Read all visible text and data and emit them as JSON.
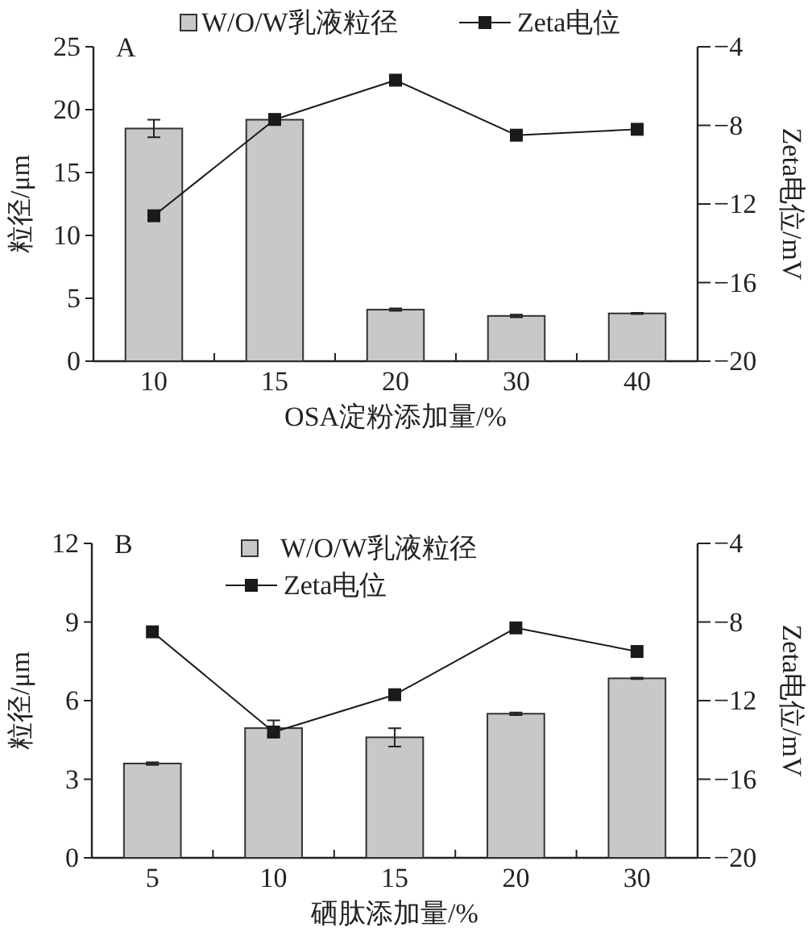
{
  "chart_data": [
    {
      "type": "bar",
      "title": "A",
      "categories": [
        "10",
        "15",
        "20",
        "30",
        "40"
      ],
      "xlabel": "OSA淀粉添加量/%",
      "ylabel": "粒径/μm",
      "y2label": "Zeta电位/mV",
      "series": [
        {
          "name": "W/O/W乳液粒径",
          "color": "#c8c8c8",
          "values": [
            18.5,
            19.2,
            4.1,
            3.6,
            3.8
          ],
          "errors": [
            0.7,
            0.1,
            0.1,
            0.1,
            0.05
          ]
        },
        {
          "name": "Zeta电位",
          "type": "line",
          "axis": "y2",
          "color": "#1a1a1a",
          "values": [
            -12.6,
            -7.7,
            -5.7,
            -8.5,
            -8.2
          ]
        }
      ],
      "ylim": [
        0,
        25
      ],
      "yticks": [
        0,
        5,
        10,
        15,
        20,
        25
      ],
      "y2lim": [
        -20,
        -4
      ],
      "y2ticks": [
        -20,
        -16,
        -12,
        -8,
        -4
      ],
      "marker": "square",
      "grid": false,
      "legend": "top"
    },
    {
      "type": "bar",
      "title": "B",
      "categories": [
        "5",
        "10",
        "15",
        "20",
        "30"
      ],
      "xlabel": "硒肽添加量/%",
      "ylabel": "粒径/μm",
      "y2label": "Zeta电位/mV",
      "series": [
        {
          "name": "W/O/W乳液粒径",
          "color": "#c8c8c8",
          "values": [
            3.6,
            4.95,
            4.6,
            5.5,
            6.85
          ],
          "errors": [
            0.05,
            0.3,
            0.35,
            0.05,
            0.03
          ]
        },
        {
          "name": "Zeta电位",
          "type": "line",
          "axis": "y2",
          "color": "#1a1a1a",
          "values": [
            -8.5,
            -13.6,
            -11.7,
            -8.3,
            -9.5
          ]
        }
      ],
      "ylim": [
        0,
        12
      ],
      "yticks": [
        0,
        3,
        6,
        9,
        12
      ],
      "y2lim": [
        -20,
        -4
      ],
      "y2ticks": [
        -20,
        -16,
        -12,
        -8,
        -4
      ],
      "marker": "square",
      "grid": false,
      "legend": "top"
    }
  ]
}
